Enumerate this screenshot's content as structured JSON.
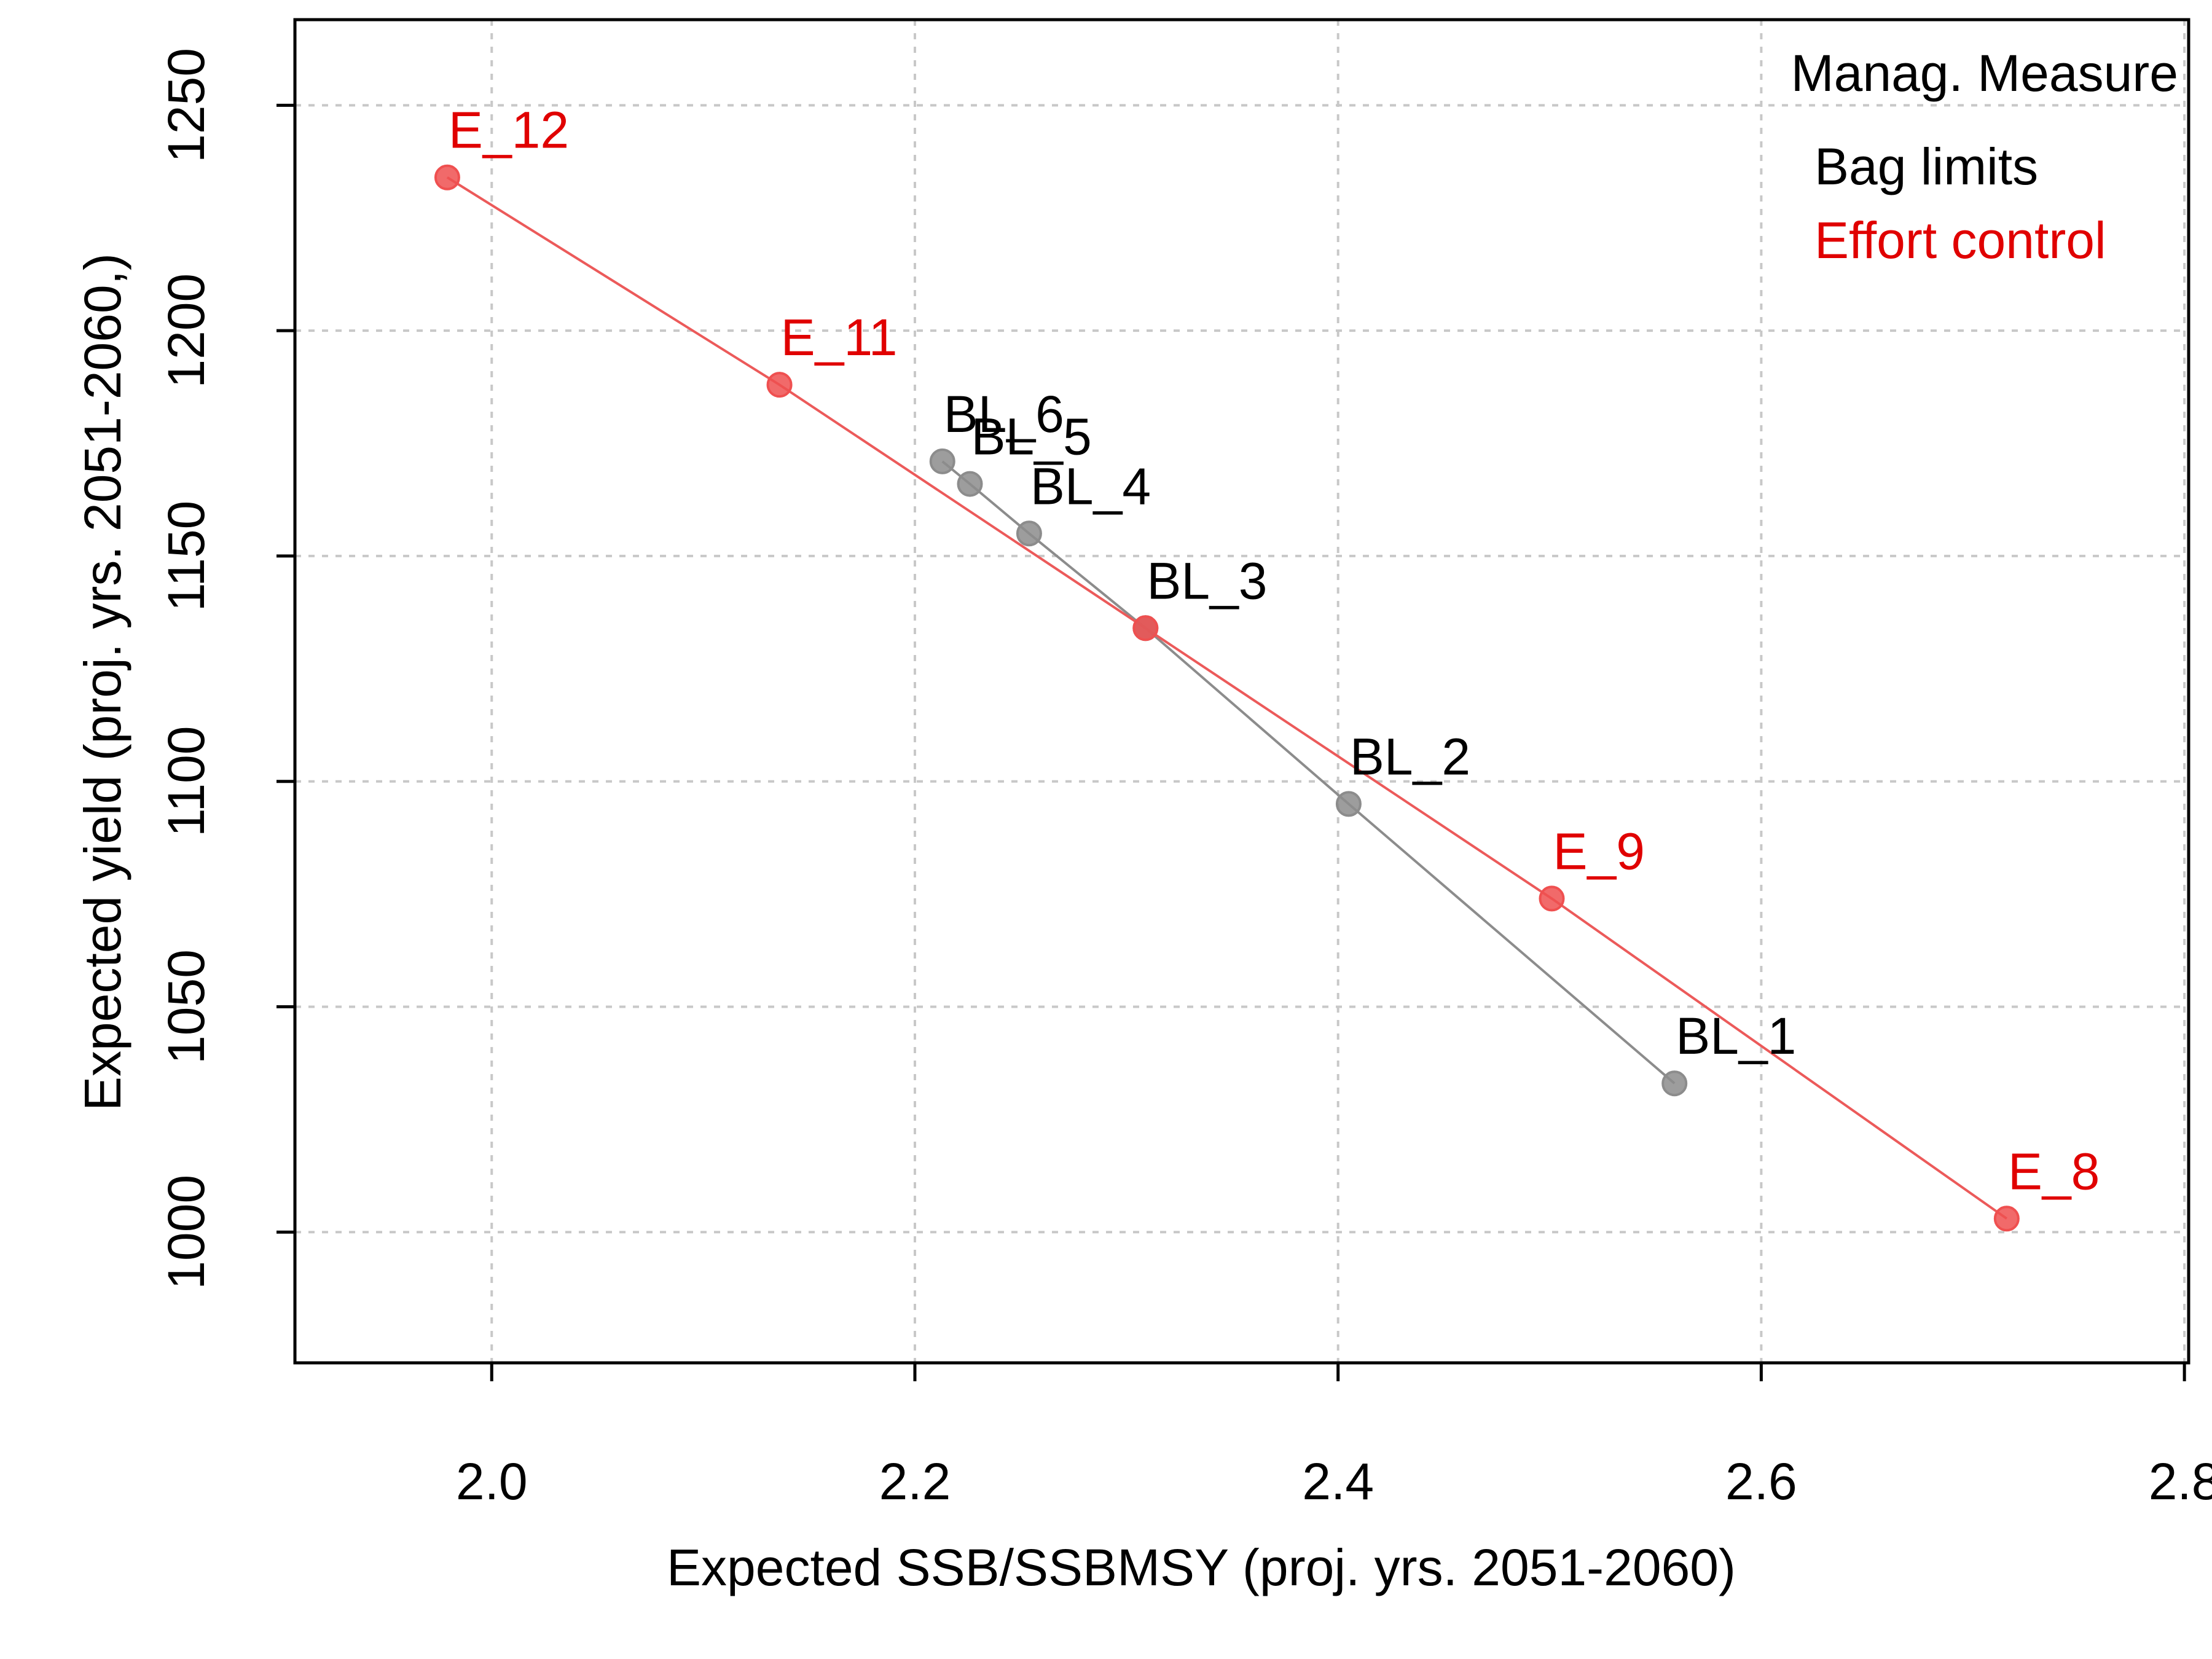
{
  "chart_data": {
    "type": "scatter",
    "title": "",
    "xlabel": "Expected SSB/SSBMSY (proj. yrs. 2051-2060)",
    "ylabel": "Expected yield (proj. yrs. 2051-2060,)",
    "xlim": [
      1.907,
      2.802
    ],
    "ylim": [
      971,
      1269
    ],
    "x_ticks": [
      {
        "value": 2.0,
        "label": "2.0"
      },
      {
        "value": 2.2,
        "label": "2.2"
      },
      {
        "value": 2.4,
        "label": "2.4"
      },
      {
        "value": 2.6,
        "label": "2.6"
      },
      {
        "value": 2.8,
        "label": "2.8"
      }
    ],
    "y_ticks": [
      {
        "value": 1000,
        "label": "1000"
      },
      {
        "value": 1050,
        "label": "1050"
      },
      {
        "value": 1100,
        "label": "1100"
      },
      {
        "value": 1150,
        "label": "1150"
      },
      {
        "value": 1200,
        "label": "1200"
      },
      {
        "value": 1250,
        "label": "1250"
      }
    ],
    "grid": true,
    "legend": {
      "placement": "top-right",
      "title": "Manag. Measure",
      "entries": [
        {
          "label": "Bag limits",
          "color": "#000000"
        },
        {
          "label": "Effort control",
          "color": "#e00000"
        }
      ]
    },
    "series": [
      {
        "line_color": "#8c8c8c",
        "point_color": "#8c8c8c",
        "label_color": "#000000",
        "points": [
          {
            "label": "BL_1",
            "x": 2.559,
            "y": 1033
          },
          {
            "label": "BL_2",
            "x": 2.405,
            "y": 1095
          },
          {
            "label": "BL_3",
            "x": 2.309,
            "y": 1134
          },
          {
            "label": "BL_4",
            "x": 2.254,
            "y": 1155
          },
          {
            "label": "BL_5",
            "x": 2.226,
            "y": 1166
          },
          {
            "label": "BL_6",
            "x": 2.213,
            "y": 1171
          }
        ]
      },
      {
        "line_color": "#ec5a5a",
        "point_color": "#ef5050",
        "label_color": "#e00000",
        "points": [
          {
            "label": "E_8",
            "x": 2.716,
            "y": 1003
          },
          {
            "label": "E_9",
            "x": 2.501,
            "y": 1074
          },
          {
            "label": "",
            "x": 2.309,
            "y": 1134
          },
          {
            "label": "E_11",
            "x": 2.136,
            "y": 1188
          },
          {
            "label": "E_12",
            "x": 1.979,
            "y": 1234
          }
        ]
      }
    ]
  }
}
